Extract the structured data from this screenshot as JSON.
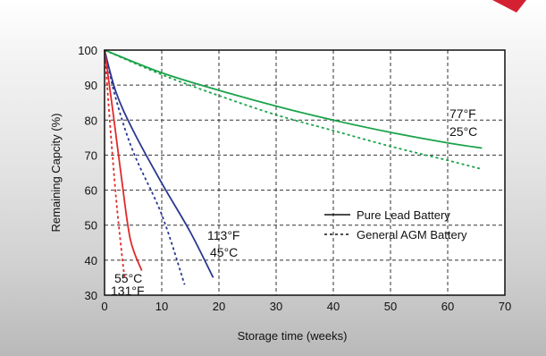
{
  "chart_data": {
    "type": "line",
    "title": "",
    "xlabel": "Storage time (weeks)",
    "ylabel": "Remaining Capcity (%)",
    "xlim": [
      0,
      70
    ],
    "ylim": [
      30,
      100
    ],
    "xticks": [
      0,
      10,
      20,
      30,
      40,
      50,
      60,
      70
    ],
    "yticks": [
      30,
      40,
      50,
      60,
      70,
      80,
      90,
      100
    ],
    "grid": true,
    "grid_style": "dashed",
    "legend": {
      "placement": "center-right",
      "entries": [
        {
          "label": "Pure Lead Battery",
          "line_style": "solid"
        },
        {
          "label": "General AGM Battery",
          "line_style": "dotted"
        }
      ]
    },
    "annotations": [
      {
        "lines": [
          "77°F",
          "25°C"
        ],
        "color": "#111111"
      },
      {
        "lines": [
          "113°F",
          "45°C"
        ],
        "color": "#111111"
      },
      {
        "lines": [
          "55°C",
          "131°F"
        ],
        "color": "#111111"
      }
    ],
    "series": [
      {
        "temperature": "77°F / 25°C",
        "battery": "Pure Lead Battery",
        "color": "#1aa34a",
        "line_style": "solid",
        "points": [
          [
            0,
            100
          ],
          [
            10,
            93.5
          ],
          [
            20,
            88.5
          ],
          [
            30,
            84
          ],
          [
            40,
            80
          ],
          [
            50,
            76.5
          ],
          [
            60,
            73.5
          ],
          [
            66,
            72
          ]
        ]
      },
      {
        "temperature": "77°F / 25°C",
        "battery": "General AGM Battery",
        "color": "#1aa34a",
        "line_style": "dotted",
        "points": [
          [
            0,
            100
          ],
          [
            10,
            93
          ],
          [
            20,
            87
          ],
          [
            30,
            81.5
          ],
          [
            40,
            77
          ],
          [
            50,
            72.5
          ],
          [
            60,
            68.5
          ],
          [
            66,
            66
          ]
        ]
      },
      {
        "temperature": "113°F / 45°C",
        "battery": "Pure Lead Battery",
        "color": "#2a3790",
        "line_style": "solid",
        "points": [
          [
            0,
            100
          ],
          [
            2,
            88
          ],
          [
            5,
            77
          ],
          [
            10,
            62
          ],
          [
            15,
            48
          ],
          [
            19,
            35
          ]
        ]
      },
      {
        "temperature": "113°F / 45°C",
        "battery": "General AGM Battery",
        "color": "#2a3790",
        "line_style": "dotted",
        "points": [
          [
            0,
            100
          ],
          [
            2,
            86
          ],
          [
            5,
            71
          ],
          [
            10,
            53
          ],
          [
            14,
            33
          ]
        ]
      },
      {
        "temperature": "131°F / 55°C",
        "battery": "Pure Lead Battery",
        "color": "#e02a2a",
        "line_style": "solid",
        "points": [
          [
            0,
            100
          ],
          [
            1.5,
            82
          ],
          [
            3,
            63
          ],
          [
            4.5,
            46
          ],
          [
            6.5,
            37
          ]
        ]
      },
      {
        "temperature": "131°F / 55°C",
        "battery": "General AGM Battery",
        "color": "#e02a2a",
        "line_style": "dotted",
        "points": [
          [
            0,
            100
          ],
          [
            1,
            78
          ],
          [
            2,
            58
          ],
          [
            3,
            42
          ],
          [
            3.5,
            35
          ]
        ]
      }
    ]
  }
}
